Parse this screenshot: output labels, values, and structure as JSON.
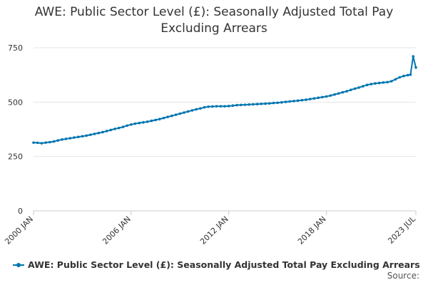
{
  "chart_data": {
    "type": "line",
    "title_lines": [
      "AWE: Public Sector Level (£): Seasonally Adjusted Total Pay",
      "Excluding Arrears"
    ],
    "legend": "AWE: Public Sector Level (£): Seasonally Adjusted Total Pay Excluding Arrears",
    "source": "Source:",
    "xlabel": "",
    "ylabel": "",
    "ylim": [
      0,
      750
    ],
    "yticks": [
      0,
      250,
      500,
      750
    ],
    "xlim": [
      "2000-01",
      "2023-07"
    ],
    "xticks": [
      "2000 JAN",
      "2006 JAN",
      "2012 JAN",
      "2018 JAN",
      "2023 JUL"
    ],
    "grid": true,
    "color": "#0075b0",
    "series": [
      {
        "name": "AWE: Public Sector Level (£): Seasonally Adjusted Total Pay Excluding Arrears",
        "points": [
          [
            "2000-01",
            314
          ],
          [
            "2000-04",
            313
          ],
          [
            "2000-07",
            311
          ],
          [
            "2000-10",
            314
          ],
          [
            "2001-01",
            316
          ],
          [
            "2001-04",
            319
          ],
          [
            "2001-07",
            324
          ],
          [
            "2001-10",
            328
          ],
          [
            "2002-01",
            331
          ],
          [
            "2002-04",
            334
          ],
          [
            "2002-07",
            337
          ],
          [
            "2002-10",
            340
          ],
          [
            "2003-01",
            343
          ],
          [
            "2003-04",
            346
          ],
          [
            "2003-07",
            350
          ],
          [
            "2003-10",
            354
          ],
          [
            "2004-01",
            358
          ],
          [
            "2004-04",
            362
          ],
          [
            "2004-07",
            367
          ],
          [
            "2004-10",
            372
          ],
          [
            "2005-01",
            377
          ],
          [
            "2005-04",
            381
          ],
          [
            "2005-07",
            386
          ],
          [
            "2005-10",
            392
          ],
          [
            "2006-01",
            397
          ],
          [
            "2006-04",
            401
          ],
          [
            "2006-07",
            404
          ],
          [
            "2006-10",
            407
          ],
          [
            "2007-01",
            410
          ],
          [
            "2007-04",
            414
          ],
          [
            "2007-07",
            418
          ],
          [
            "2007-10",
            422
          ],
          [
            "2008-01",
            427
          ],
          [
            "2008-04",
            432
          ],
          [
            "2008-07",
            437
          ],
          [
            "2008-10",
            442
          ],
          [
            "2009-01",
            447
          ],
          [
            "2009-04",
            452
          ],
          [
            "2009-07",
            457
          ],
          [
            "2009-10",
            462
          ],
          [
            "2010-01",
            467
          ],
          [
            "2010-04",
            471
          ],
          [
            "2010-07",
            476
          ],
          [
            "2010-10",
            479
          ],
          [
            "2011-01",
            480
          ],
          [
            "2011-04",
            481
          ],
          [
            "2011-07",
            481
          ],
          [
            "2011-10",
            481
          ],
          [
            "2012-01",
            482
          ],
          [
            "2012-04",
            484
          ],
          [
            "2012-07",
            486
          ],
          [
            "2012-10",
            487
          ],
          [
            "2013-01",
            488
          ],
          [
            "2013-04",
            489
          ],
          [
            "2013-07",
            490
          ],
          [
            "2013-10",
            491
          ],
          [
            "2014-01",
            492
          ],
          [
            "2014-04",
            493
          ],
          [
            "2014-07",
            494
          ],
          [
            "2014-10",
            496
          ],
          [
            "2015-01",
            497
          ],
          [
            "2015-04",
            499
          ],
          [
            "2015-07",
            501
          ],
          [
            "2015-10",
            503
          ],
          [
            "2016-01",
            505
          ],
          [
            "2016-04",
            507
          ],
          [
            "2016-07",
            509
          ],
          [
            "2016-10",
            511
          ],
          [
            "2017-01",
            514
          ],
          [
            "2017-04",
            517
          ],
          [
            "2017-07",
            520
          ],
          [
            "2017-10",
            523
          ],
          [
            "2018-01",
            526
          ],
          [
            "2018-04",
            530
          ],
          [
            "2018-07",
            535
          ],
          [
            "2018-10",
            540
          ],
          [
            "2019-01",
            545
          ],
          [
            "2019-04",
            550
          ],
          [
            "2019-07",
            556
          ],
          [
            "2019-10",
            562
          ],
          [
            "2020-01",
            567
          ],
          [
            "2020-04",
            573
          ],
          [
            "2020-07",
            579
          ],
          [
            "2020-10",
            583
          ],
          [
            "2021-01",
            586
          ],
          [
            "2021-04",
            588
          ],
          [
            "2021-07",
            590
          ],
          [
            "2021-10",
            592
          ],
          [
            "2022-01",
            596
          ],
          [
            "2022-04",
            605
          ],
          [
            "2022-07",
            614
          ],
          [
            "2022-10",
            620
          ],
          [
            "2023-01",
            624
          ],
          [
            "2023-03",
            626
          ],
          [
            "2023-05",
            710
          ],
          [
            "2023-07",
            659
          ]
        ]
      }
    ]
  }
}
